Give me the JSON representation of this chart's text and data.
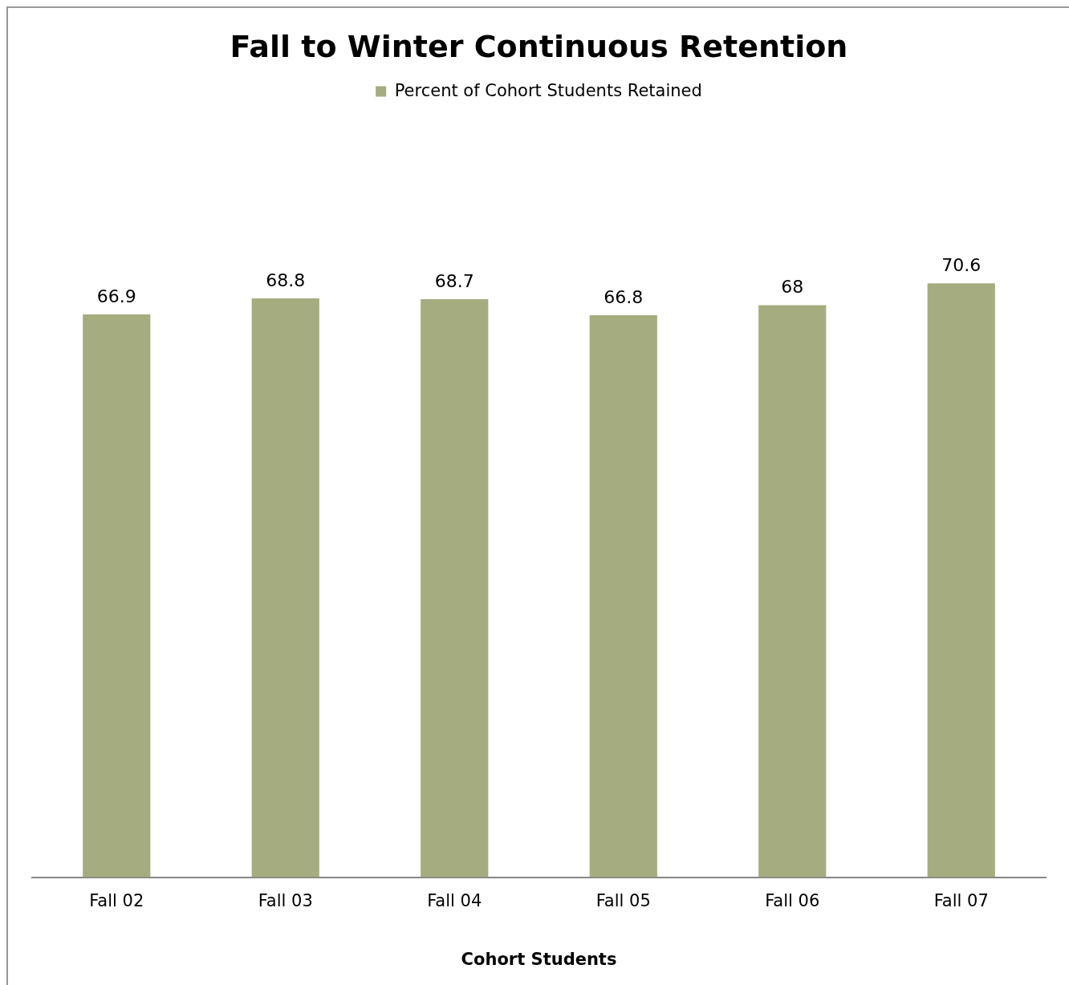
{
  "chart_data": {
    "type": "bar",
    "title": "Fall to Winter Continuous Retention",
    "xlabel": "Cohort Students",
    "categories": [
      "Fall 02",
      "Fall 03",
      "Fall 04",
      "Fall 05",
      "Fall 06",
      "Fall 07"
    ],
    "series": [
      {
        "name": "Percent of Cohort Students Retained",
        "color": "#a5ac80",
        "values": [
          66.9,
          68.8,
          68.7,
          66.8,
          68,
          70.6
        ]
      }
    ],
    "data_labels": true,
    "legend": "top",
    "grid": false,
    "tick_labels": "x"
  }
}
